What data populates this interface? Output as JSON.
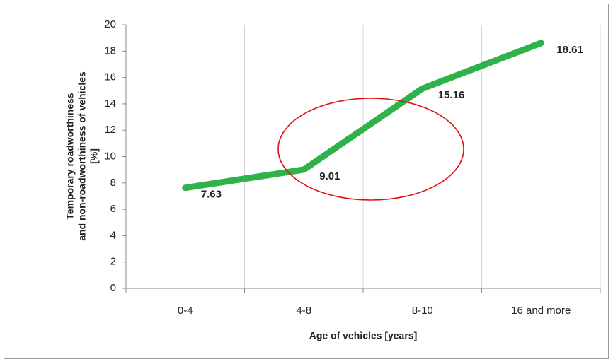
{
  "chart_data": {
    "type": "line",
    "categories": [
      "0-4",
      "4-8",
      "8-10",
      "16 and more"
    ],
    "values": [
      7.63,
      9.01,
      15.16,
      18.61
    ],
    "color": "#2fb24a",
    "x_label": "Age of vehicles [years]",
    "y_label": [
      "Temporary roadworthiness",
      "and  non-roadworthiness  of  vehicles",
      "[%]"
    ],
    "ylim": [
      0,
      20
    ],
    "yticks": [
      0,
      2,
      4,
      6,
      8,
      10,
      12,
      14,
      16,
      18,
      20
    ],
    "data_labels": true
  }
}
